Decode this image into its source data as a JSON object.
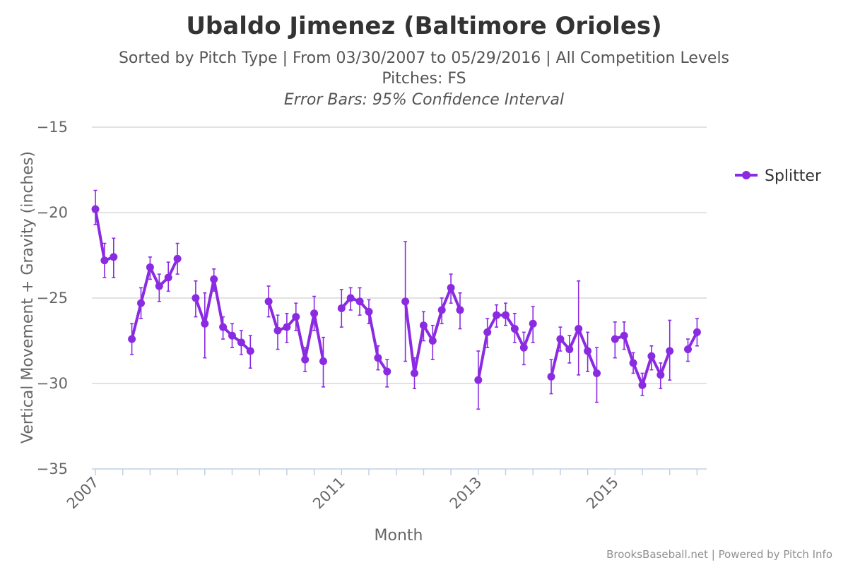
{
  "chart_data": {
    "type": "line",
    "title": "Ubaldo Jimenez (Baltimore Orioles)",
    "subtitle_lines": [
      "Sorted by Pitch Type | From 03/30/2007 to 05/29/2016 | All Competition Levels",
      "Pitches: FS",
      "Error Bars: 95% Confidence Interval"
    ],
    "xlabel": "Month",
    "ylabel": "Vertical Movement + Gravity (inches)",
    "ylim": [
      -35,
      -15
    ],
    "yticks": [
      -15,
      -20,
      -25,
      -30,
      -35
    ],
    "xticks": [
      {
        "label": "2007",
        "index": 0
      },
      {
        "label": "2011",
        "index": 27
      },
      {
        "label": "2013",
        "index": 42
      },
      {
        "label": "2015",
        "index": 57
      }
    ],
    "x_range": [
      0,
      66.5
    ],
    "grid": true,
    "legend_position": "right",
    "credits": "BrooksBaseball.net | Powered by Pitch Info",
    "colors": {
      "series": "#8a2be2",
      "grid": "#d8d8d8",
      "axis": "#c0d0e0"
    },
    "series": [
      {
        "name": "Splitter",
        "points": [
          {
            "i": 0,
            "y": -19.8,
            "lo": -20.7,
            "hi": -18.7
          },
          {
            "i": 1,
            "y": -22.8,
            "lo": -23.8,
            "hi": -21.8
          },
          {
            "i": 2,
            "y": -22.6,
            "lo": -23.8,
            "hi": -21.5
          },
          null,
          {
            "i": 4,
            "y": -27.4,
            "lo": -28.3,
            "hi": -26.5
          },
          {
            "i": 5,
            "y": -25.3,
            "lo": -26.2,
            "hi": -24.4
          },
          {
            "i": 6,
            "y": -23.2,
            "lo": -23.9,
            "hi": -22.6
          },
          {
            "i": 7,
            "y": -24.3,
            "lo": -25.2,
            "hi": -23.6
          },
          {
            "i": 8,
            "y": -23.8,
            "lo": -24.6,
            "hi": -22.9
          },
          {
            "i": 9,
            "y": -22.7,
            "lo": -23.6,
            "hi": -21.8
          },
          null,
          {
            "i": 11,
            "y": -25.0,
            "lo": -26.1,
            "hi": -24.0
          },
          {
            "i": 12,
            "y": -26.5,
            "lo": -28.5,
            "hi": -24.7
          },
          {
            "i": 13,
            "y": -23.9,
            "lo": -24.6,
            "hi": -23.3
          },
          {
            "i": 14,
            "y": -26.7,
            "lo": -27.4,
            "hi": -26.1
          },
          {
            "i": 15,
            "y": -27.2,
            "lo": -27.9,
            "hi": -26.5
          },
          {
            "i": 16,
            "y": -27.6,
            "lo": -28.3,
            "hi": -26.9
          },
          {
            "i": 17,
            "y": -28.1,
            "lo": -29.1,
            "hi": -27.2
          },
          null,
          {
            "i": 19,
            "y": -25.2,
            "lo": -26.1,
            "hi": -24.3
          },
          {
            "i": 20,
            "y": -26.9,
            "lo": -28.0,
            "hi": -26.0
          },
          {
            "i": 21,
            "y": -26.7,
            "lo": -27.6,
            "hi": -25.9
          },
          {
            "i": 22,
            "y": -26.1,
            "lo": -26.9,
            "hi": -25.3
          },
          {
            "i": 23,
            "y": -28.6,
            "lo": -29.3,
            "hi": -27.9
          },
          {
            "i": 24,
            "y": -25.9,
            "lo": -26.9,
            "hi": -24.9
          },
          {
            "i": 25,
            "y": -28.7,
            "lo": -30.2,
            "hi": -27.3
          },
          null,
          {
            "i": 27,
            "y": -25.6,
            "lo": -26.7,
            "hi": -24.5
          },
          {
            "i": 28,
            "y": -25.0,
            "lo": -25.7,
            "hi": -24.4
          },
          {
            "i": 29,
            "y": -25.2,
            "lo": -26.0,
            "hi": -24.4
          },
          {
            "i": 30,
            "y": -25.8,
            "lo": -26.5,
            "hi": -25.1
          },
          {
            "i": 31,
            "y": -28.5,
            "lo": -29.2,
            "hi": -27.8
          },
          {
            "i": 32,
            "y": -29.3,
            "lo": -30.2,
            "hi": -28.6
          },
          null,
          {
            "i": 34,
            "y": -25.2,
            "lo": -28.7,
            "hi": -21.7
          },
          {
            "i": 35,
            "y": -29.4,
            "lo": -30.3,
            "hi": -28.5
          },
          {
            "i": 36,
            "y": -26.6,
            "lo": -27.5,
            "hi": -25.8
          },
          {
            "i": 37,
            "y": -27.5,
            "lo": -28.6,
            "hi": -26.6
          },
          {
            "i": 38,
            "y": -25.7,
            "lo": -26.5,
            "hi": -25.0
          },
          {
            "i": 39,
            "y": -24.4,
            "lo": -25.3,
            "hi": -23.6
          },
          {
            "i": 40,
            "y": -25.7,
            "lo": -26.8,
            "hi": -24.7
          },
          null,
          {
            "i": 42,
            "y": -29.8,
            "lo": -31.5,
            "hi": -28.1
          },
          {
            "i": 43,
            "y": -27.0,
            "lo": -27.9,
            "hi": -26.2
          },
          {
            "i": 44,
            "y": -26.0,
            "lo": -26.7,
            "hi": -25.4
          },
          {
            "i": 45,
            "y": -26.0,
            "lo": -26.6,
            "hi": -25.3
          },
          {
            "i": 46,
            "y": -26.8,
            "lo": -27.6,
            "hi": -25.9
          },
          {
            "i": 47,
            "y": -27.9,
            "lo": -28.9,
            "hi": -27.0
          },
          {
            "i": 48,
            "y": -26.5,
            "lo": -27.6,
            "hi": -25.5
          },
          null,
          {
            "i": 50,
            "y": -29.6,
            "lo": -30.6,
            "hi": -28.6
          },
          {
            "i": 51,
            "y": -27.4,
            "lo": -28.1,
            "hi": -26.7
          },
          {
            "i": 52,
            "y": -28.0,
            "lo": -28.8,
            "hi": -27.2
          },
          {
            "i": 53,
            "y": -26.8,
            "lo": -29.5,
            "hi": -24.0
          },
          {
            "i": 54,
            "y": -28.1,
            "lo": -29.3,
            "hi": -27.0
          },
          {
            "i": 55,
            "y": -29.4,
            "lo": -31.1,
            "hi": -27.9
          },
          null,
          {
            "i": 57,
            "y": -27.4,
            "lo": -28.5,
            "hi": -26.4
          },
          {
            "i": 58,
            "y": -27.2,
            "lo": -28.0,
            "hi": -26.4
          },
          {
            "i": 59,
            "y": -28.8,
            "lo": -29.4,
            "hi": -28.2
          },
          {
            "i": 60,
            "y": -30.1,
            "lo": -30.7,
            "hi": -29.4
          },
          {
            "i": 61,
            "y": -28.4,
            "lo": -29.2,
            "hi": -27.8
          },
          {
            "i": 62,
            "y": -29.5,
            "lo": -30.3,
            "hi": -28.8
          },
          {
            "i": 63,
            "y": -28.1,
            "lo": -29.8,
            "hi": -26.3
          },
          null,
          {
            "i": 65,
            "y": -28.0,
            "lo": -28.7,
            "hi": -27.4
          },
          {
            "i": 66,
            "y": -27.0,
            "lo": -27.8,
            "hi": -26.2
          }
        ]
      }
    ]
  }
}
